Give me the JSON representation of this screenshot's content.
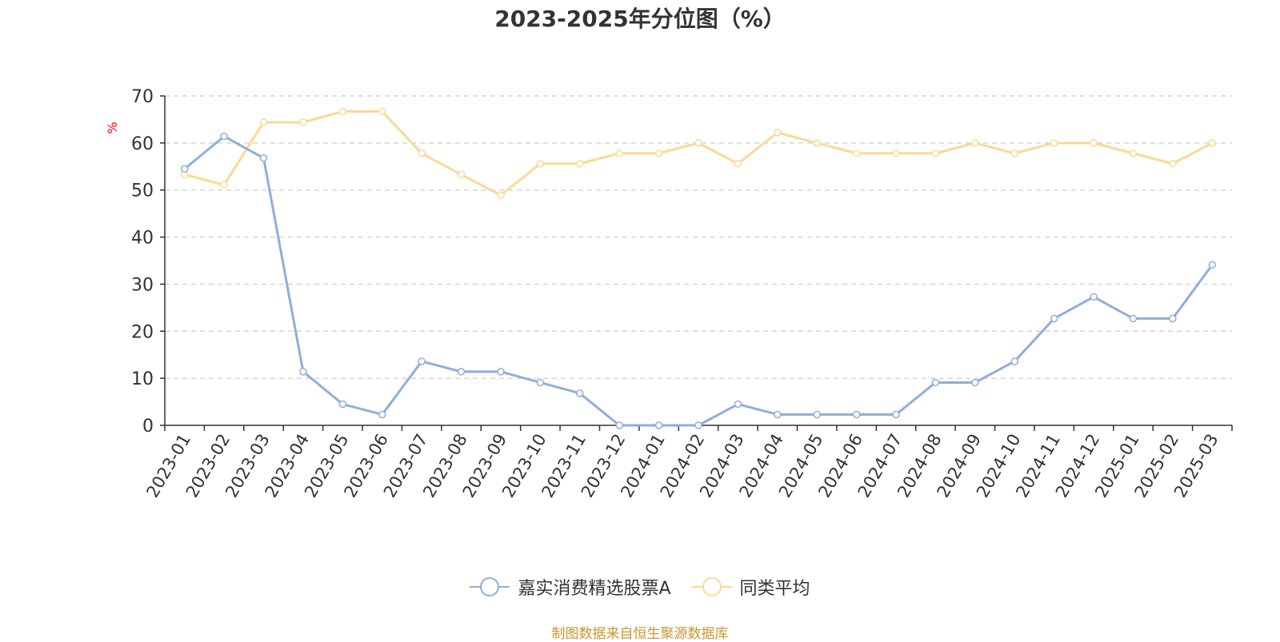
{
  "title": "2023-2025年分位图（%）",
  "y_unit": "%",
  "source": "制图数据来自恒生聚源数据库",
  "colors": {
    "series1": "#8eaedb",
    "series2": "#fbd994",
    "grid": "#cccccc",
    "axis": "#333333",
    "unit": "#ff0000"
  },
  "chart_data": {
    "type": "line",
    "title": "2023-2025年分位图（%）",
    "xlabel": "",
    "ylabel": "%",
    "ylim": [
      0,
      70
    ],
    "yticks": [
      0,
      10,
      20,
      30,
      40,
      50,
      60,
      70
    ],
    "grid": true,
    "legend_position": "bottom-center",
    "x": [
      "2023-01",
      "2023-02",
      "2023-03",
      "2023-04",
      "2023-05",
      "2023-06",
      "2023-07",
      "2023-08",
      "2023-09",
      "2023-10",
      "2023-11",
      "2023-12",
      "2024-01",
      "2024-02",
      "2024-03",
      "2024-04",
      "2024-05",
      "2024-06",
      "2024-07",
      "2024-08",
      "2024-09",
      "2024-10",
      "2024-11",
      "2024-12",
      "2025-01",
      "2025-02",
      "2025-03"
    ],
    "series": [
      {
        "name": "嘉实消费精选股票A",
        "values": [
          54.5,
          61.4,
          56.8,
          11.4,
          4.5,
          2.3,
          13.6,
          11.4,
          11.4,
          9.1,
          6.8,
          0,
          0,
          0,
          4.5,
          2.3,
          2.3,
          2.3,
          2.3,
          9.1,
          9.1,
          13.6,
          22.7,
          27.3,
          22.7,
          22.7,
          34.1
        ]
      },
      {
        "name": "同类平均",
        "values": [
          53.3,
          51.1,
          64.4,
          64.4,
          66.7,
          66.7,
          57.8,
          53.3,
          48.9,
          55.6,
          55.6,
          57.8,
          57.8,
          60.0,
          55.6,
          62.2,
          60.0,
          57.8,
          57.8,
          57.8,
          60.0,
          57.8,
          60.0,
          60.0,
          57.8,
          55.6,
          60.0
        ]
      }
    ]
  }
}
